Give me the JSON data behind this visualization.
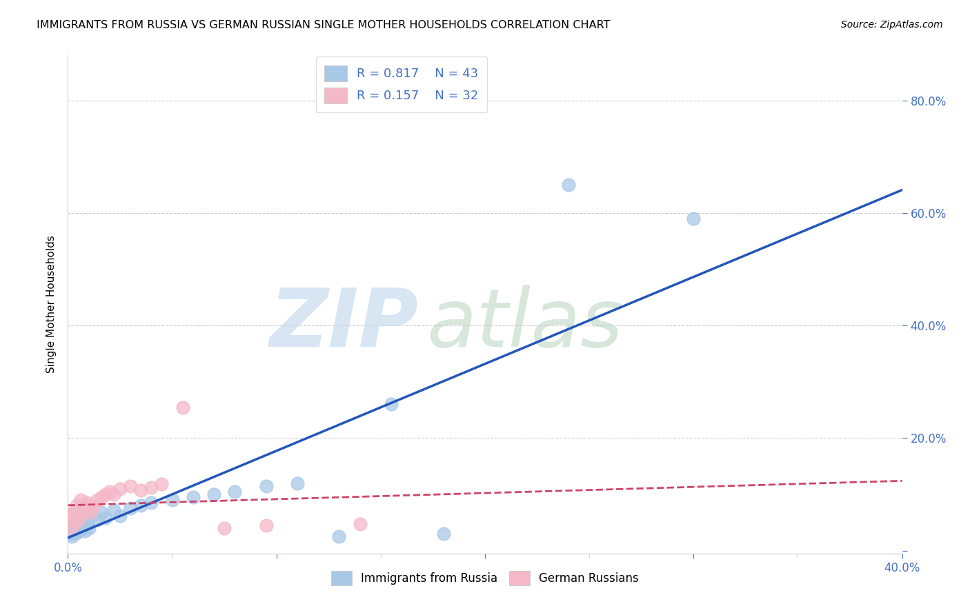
{
  "title": "IMMIGRANTS FROM RUSSIA VS GERMAN RUSSIAN SINGLE MOTHER HOUSEHOLDS CORRELATION CHART",
  "source": "Source: ZipAtlas.com",
  "ylabel": "Single Mother Households",
  "bottom_legend_blue": "Immigrants from Russia",
  "bottom_legend_pink": "German Russians",
  "xlim": [
    0.0,
    0.4
  ],
  "ylim": [
    -0.005,
    0.88
  ],
  "xticks": [
    0.0,
    0.1,
    0.2,
    0.3,
    0.4
  ],
  "yticks": [
    0.0,
    0.2,
    0.4,
    0.6,
    0.8
  ],
  "ytick_labels": [
    "",
    "20.0%",
    "40.0%",
    "60.0%",
    "80.0%"
  ],
  "xtick_labels": [
    "0.0%",
    "",
    "",
    "",
    "40.0%"
  ],
  "blue_color": "#A8C8E8",
  "pink_color": "#F4B8C8",
  "blue_line_color": "#2255BB",
  "pink_line_color": "#CC4466",
  "R_blue": "0.817",
  "N_blue": "43",
  "R_pink": "0.157",
  "N_pink": "32",
  "blue_scatter_x": [
    0.001,
    0.001,
    0.002,
    0.002,
    0.002,
    0.003,
    0.003,
    0.003,
    0.004,
    0.004,
    0.004,
    0.005,
    0.005,
    0.005,
    0.006,
    0.006,
    0.007,
    0.007,
    0.008,
    0.008,
    0.009,
    0.01,
    0.01,
    0.012,
    0.014,
    0.016,
    0.018,
    0.022,
    0.025,
    0.03,
    0.035,
    0.04,
    0.05,
    0.06,
    0.07,
    0.08,
    0.095,
    0.11,
    0.13,
    0.155,
    0.18,
    0.24,
    0.3
  ],
  "blue_scatter_y": [
    0.03,
    0.038,
    0.025,
    0.035,
    0.042,
    0.03,
    0.038,
    0.048,
    0.032,
    0.045,
    0.052,
    0.035,
    0.042,
    0.055,
    0.038,
    0.048,
    0.04,
    0.058,
    0.035,
    0.045,
    0.05,
    0.04,
    0.06,
    0.065,
    0.055,
    0.068,
    0.058,
    0.072,
    0.062,
    0.075,
    0.08,
    0.085,
    0.09,
    0.095,
    0.1,
    0.105,
    0.115,
    0.12,
    0.025,
    0.26,
    0.03,
    0.65,
    0.59
  ],
  "pink_scatter_x": [
    0.001,
    0.001,
    0.002,
    0.002,
    0.003,
    0.003,
    0.004,
    0.004,
    0.005,
    0.005,
    0.006,
    0.006,
    0.007,
    0.008,
    0.009,
    0.01,
    0.011,
    0.012,
    0.014,
    0.016,
    0.018,
    0.02,
    0.022,
    0.025,
    0.03,
    0.035,
    0.04,
    0.045,
    0.055,
    0.075,
    0.095,
    0.14
  ],
  "pink_scatter_y": [
    0.05,
    0.06,
    0.04,
    0.065,
    0.055,
    0.07,
    0.06,
    0.08,
    0.055,
    0.075,
    0.07,
    0.09,
    0.065,
    0.075,
    0.085,
    0.08,
    0.068,
    0.078,
    0.09,
    0.095,
    0.1,
    0.105,
    0.1,
    0.11,
    0.115,
    0.108,
    0.112,
    0.118,
    0.255,
    0.04,
    0.045,
    0.048
  ],
  "grid_color": "#CCCCCC",
  "background_color": "#FFFFFF",
  "axis_color": "#CCCCCC",
  "tick_color": "#4472C4"
}
